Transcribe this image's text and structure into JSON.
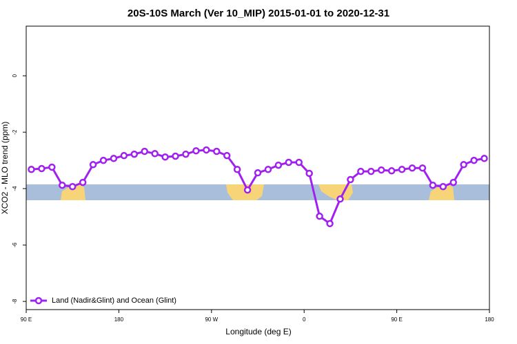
{
  "chart_data": {
    "type": "line",
    "title": "20S-10S March (Ver 10_MIP)   2015-01-01 to 2020-12-31",
    "x_label": "Longitude (deg E)",
    "y_label": "XCO2 - MLO trend (ppm)",
    "x": [
      95,
      105,
      115,
      125,
      135,
      145,
      155,
      165,
      175,
      185,
      195,
      205,
      215,
      225,
      235,
      245,
      255,
      265,
      275,
      285,
      295,
      305,
      315,
      325,
      335,
      345,
      355,
      365,
      375,
      385,
      395,
      405,
      415,
      425,
      435,
      445,
      455,
      465,
      475,
      485,
      495,
      505,
      515,
      525,
      535
    ],
    "series": [
      {
        "name": "Land (Nadir&Glint) and Ocean (Glint)",
        "color": "#a020f0",
        "values": [
          -3.32,
          -3.29,
          -3.24,
          -3.88,
          -3.93,
          -3.78,
          -3.15,
          -3.0,
          -2.93,
          -2.83,
          -2.78,
          -2.68,
          -2.76,
          -2.88,
          -2.85,
          -2.78,
          -2.66,
          -2.63,
          -2.68,
          -2.83,
          -3.32,
          -4.05,
          -3.44,
          -3.32,
          -3.17,
          -3.07,
          -3.07,
          -3.46,
          -4.98,
          -5.24,
          -4.37,
          -3.68,
          -3.39,
          -3.39,
          -3.34,
          -3.37,
          -3.32,
          -3.27,
          -3.27,
          -3.88,
          -3.93,
          -3.78,
          -3.15,
          -3.0,
          -2.93
        ]
      }
    ],
    "xlim": [
      90,
      540
    ],
    "xticks": [
      {
        "value": 90,
        "label": "90 E"
      },
      {
        "value": 180,
        "label": "180"
      },
      {
        "value": 270,
        "label": "90 W"
      },
      {
        "value": 360,
        "label": "0"
      },
      {
        "value": 450,
        "label": "90 E"
      },
      {
        "value": 540,
        "label": "180"
      }
    ],
    "ylim": [
      -8.29,
      1.76
    ],
    "yticks": [
      0,
      -2,
      -4,
      -6,
      -8
    ],
    "legend": "bottom-left"
  }
}
